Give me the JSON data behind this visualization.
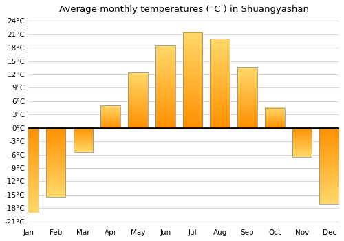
{
  "title": "Average monthly temperatures (°C ) in Shuangyashan",
  "months": [
    "Jan",
    "Feb",
    "Mar",
    "Apr",
    "May",
    "Jun",
    "Jul",
    "Aug",
    "Sep",
    "Oct",
    "Nov",
    "Dec"
  ],
  "values": [
    -19,
    -15.5,
    -5.5,
    5,
    12.5,
    18.5,
    21.5,
    20,
    13.5,
    4.5,
    -6.5,
    -17
  ],
  "bar_color_top": "#FFB800",
  "bar_color_bottom": "#FF8C00",
  "bar_edge_color": "#888888",
  "ylim": [
    -22,
    25
  ],
  "yticks": [
    -21,
    -18,
    -15,
    -12,
    -9,
    -6,
    -3,
    0,
    3,
    6,
    9,
    12,
    15,
    18,
    21,
    24
  ],
  "ytick_labels": [
    "-21°C",
    "-18°C",
    "-15°C",
    "-12°C",
    "-9°C",
    "-6°C",
    "-3°C",
    "0°C",
    "3°C",
    "6°C",
    "9°C",
    "12°C",
    "15°C",
    "18°C",
    "21°C",
    "24°C"
  ],
  "grid_color": "#d8d8d8",
  "background_color": "#ffffff",
  "zero_line_color": "#000000",
  "title_fontsize": 9.5,
  "tick_fontsize": 7.5,
  "bar_width": 0.72
}
